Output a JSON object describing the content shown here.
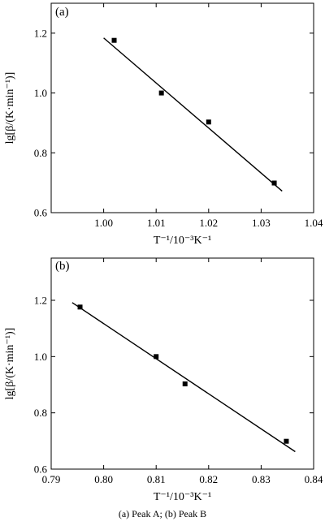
{
  "caption": "(a) Peak A; (b) Peak B",
  "chart_data": [
    {
      "type": "scatter",
      "panel_label": "(a)",
      "xlabel": "T⁻¹/10⁻³K⁻¹",
      "ylabel": "lg[β/(K·min⁻¹)]",
      "xlim": [
        0.99,
        1.04
      ],
      "ylim": [
        0.6,
        1.3
      ],
      "xticks": [
        1.0,
        1.01,
        1.02,
        1.03,
        1.04
      ],
      "yticks": [
        0.6,
        0.8,
        1.0,
        1.2
      ],
      "xtick_labels": [
        "1.00",
        "1.01",
        "1.02",
        "1.03",
        "1.04"
      ],
      "ytick_labels": [
        "0.6",
        "0.8",
        "1.0",
        "1.2"
      ],
      "series": [
        {
          "points": [
            [
              1.002,
              1.176
            ],
            [
              1.011,
              1.0
            ],
            [
              1.02,
              0.903
            ],
            [
              1.0325,
              0.699
            ]
          ]
        }
      ],
      "fit_line": [
        [
          1.0,
          1.184
        ],
        [
          1.034,
          0.672
        ]
      ]
    },
    {
      "type": "scatter",
      "panel_label": "(b)",
      "xlabel": "T⁻¹/10⁻³K⁻¹",
      "ylabel": "lg[β/(K·min⁻¹)]",
      "xlim": [
        0.79,
        0.84
      ],
      "ylim": [
        0.6,
        1.35
      ],
      "xticks": [
        0.79,
        0.8,
        0.81,
        0.82,
        0.83,
        0.84
      ],
      "yticks": [
        0.6,
        0.8,
        1.0,
        1.2
      ],
      "xtick_labels": [
        "0.79",
        "0.80",
        "0.81",
        "0.82",
        "0.83",
        "0.84"
      ],
      "ytick_labels": [
        "0.6",
        "0.8",
        "1.0",
        "1.2"
      ],
      "series": [
        {
          "points": [
            [
              0.7955,
              1.176
            ],
            [
              0.81,
              1.0
            ],
            [
              0.8155,
              0.903
            ],
            [
              0.8348,
              0.699
            ]
          ]
        }
      ],
      "fit_line": [
        [
          0.794,
          1.192
        ],
        [
          0.8365,
          0.662
        ]
      ]
    }
  ]
}
